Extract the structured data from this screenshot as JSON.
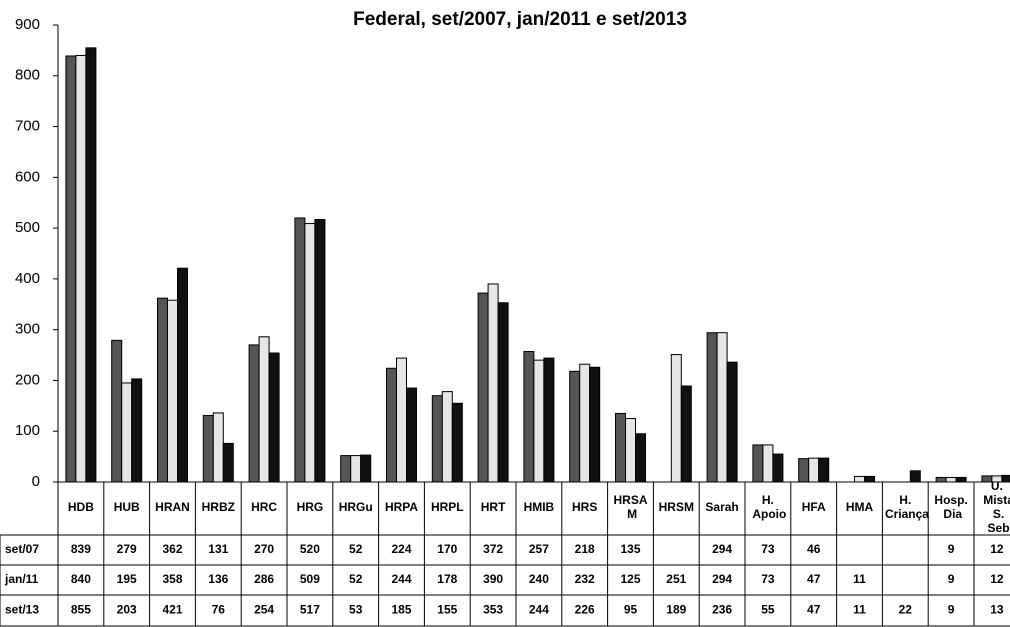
{
  "chart_data": {
    "type": "bar",
    "title": "Federal, set/2007, jan/2011 e set/2013",
    "categories": [
      "HDB",
      "HUB",
      "HRAN",
      "HRBZ",
      "HRC",
      "HRG",
      "HRGu",
      "HRPA",
      "HRPL",
      "HRT",
      "HMIB",
      "HRS",
      "HRSA M",
      "HRSM",
      "Sarah",
      "H. Apoio",
      "HFA",
      "HMA",
      "H. Criança",
      "Hosp. Dia",
      "U. Mista S. Seb"
    ],
    "series": [
      {
        "name": "set/07",
        "color": "#555555",
        "values": [
          839,
          279,
          362,
          131,
          270,
          520,
          52,
          224,
          170,
          372,
          257,
          218,
          135,
          null,
          294,
          73,
          46,
          null,
          null,
          9,
          12
        ]
      },
      {
        "name": "jan/11",
        "color": "#e6e6e6",
        "values": [
          840,
          195,
          358,
          136,
          286,
          509,
          52,
          244,
          178,
          390,
          240,
          232,
          125,
          251,
          294,
          73,
          47,
          11,
          null,
          9,
          12
        ]
      },
      {
        "name": "set/13",
        "color": "#111111",
        "values": [
          855,
          203,
          421,
          76,
          254,
          517,
          53,
          185,
          155,
          353,
          244,
          226,
          95,
          189,
          236,
          55,
          47,
          11,
          22,
          9,
          13
        ]
      }
    ],
    "ylim": [
      0,
      900
    ],
    "yticks": [
      0,
      100,
      200,
      300,
      400,
      500,
      600,
      700,
      800,
      900
    ]
  }
}
